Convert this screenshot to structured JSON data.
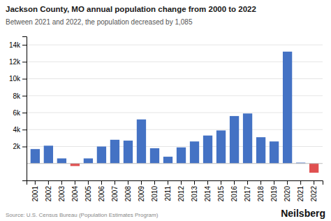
{
  "chart_data": {
    "type": "bar",
    "title": "Jackson County, MO annual population change from 2000 to 2022",
    "subtitle": "Between 2021 and 2022, the population decreased by 1,085",
    "annotations": [
      "Source: U.S. Census Bureau (Population Estimates Program)",
      "Neilsberg"
    ],
    "categories": [
      "2001",
      "2002",
      "2003",
      "2004",
      "2005",
      "2006",
      "2007",
      "2008",
      "2009",
      "2010",
      "2011",
      "2012",
      "2013",
      "2014",
      "2015",
      "2016",
      "2017",
      "2018",
      "2019",
      "2020",
      "2021",
      "2022"
    ],
    "values": [
      1700,
      2100,
      600,
      -300,
      600,
      2000,
      2800,
      2700,
      5200,
      1800,
      800,
      1900,
      2600,
      3300,
      3900,
      5600,
      5900,
      3100,
      2600,
      13200,
      100,
      -1085
    ],
    "colors": [
      "#4472C4",
      "#4472C4",
      "#4472C4",
      "#E05050",
      "#4472C4",
      "#4472C4",
      "#4472C4",
      "#4472C4",
      "#4472C4",
      "#4472C4",
      "#4472C4",
      "#4472C4",
      "#4472C4",
      "#4472C4",
      "#4472C4",
      "#4472C4",
      "#4472C4",
      "#4472C4",
      "#4472C4",
      "#4472C4",
      "#4472C4",
      "#E05050"
    ],
    "ylim": [
      -2000,
      15000
    ],
    "yticks": [
      {
        "value": 2000,
        "label": "2k"
      },
      {
        "value": 4000,
        "label": "4k"
      },
      {
        "value": 6000,
        "label": "6k"
      },
      {
        "value": 8000,
        "label": "8k"
      },
      {
        "value": 10000,
        "label": "10k"
      },
      {
        "value": 12000,
        "label": "12k"
      },
      {
        "value": 14000,
        "label": "14k"
      }
    ],
    "grid": true
  }
}
